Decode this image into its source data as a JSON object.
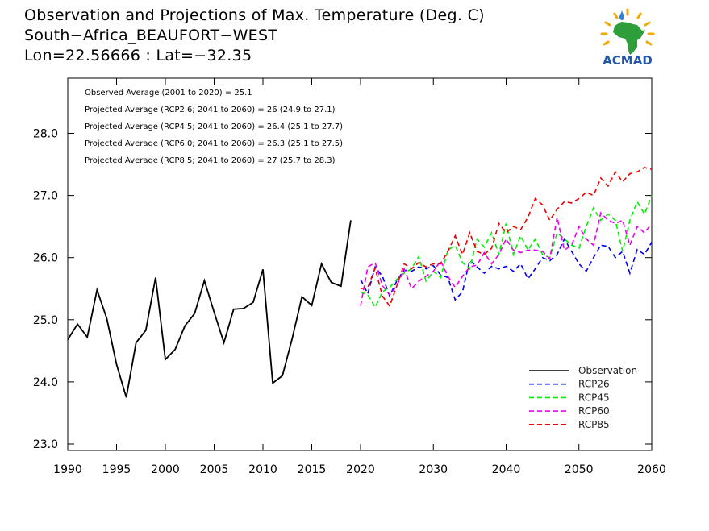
{
  "header": {
    "line1": "Observation and Projections of Max. Temperature (Deg. C)",
    "line2": "South−Africa_BEAUFORT−WEST",
    "line3": "Lon=22.56666 : Lat=−32.35"
  },
  "logo": {
    "text": "ACMAD",
    "icon": "africa-map-logo"
  },
  "annotations": [
    "Observed Average (2001 to 2020) = 25.1",
    "Projected Average (RCP2.6; 2041 to 2060) = 26 (24.9 to 27.1)",
    "Projected Average (RCP4.5; 2041 to 2060) = 26.4 (25.1 to 27.7)",
    "Projected Average (RCP6.0; 2041 to 2060) = 26.3 (25.1 to 27.5)",
    "Projected Average (RCP8.5; 2041 to 2060) = 27 (25.7 to 28.3)"
  ],
  "chart_data": {
    "type": "line",
    "title": "Observation and Projections of Max. Temperature (Deg. C)",
    "xlabel": "",
    "ylabel": "",
    "xlim": [
      1990,
      2060
    ],
    "ylim": [
      22.9,
      29.0
    ],
    "grid": false,
    "legend_position": "bottom-right",
    "x_ticks": [
      {
        "value": 1990,
        "label": "1990"
      },
      {
        "value": 1995,
        "label": "1995"
      },
      {
        "value": 2000,
        "label": "2000"
      },
      {
        "value": 2005,
        "label": "2005"
      },
      {
        "value": 2010,
        "label": "2010"
      },
      {
        "value": 2015,
        "label": "2015"
      },
      {
        "value": 2020,
        "label": "2020"
      },
      {
        "value": 2030,
        "label": "2030"
      },
      {
        "value": 2040,
        "label": "2040"
      },
      {
        "value": 2050,
        "label": "2050"
      },
      {
        "value": 2060,
        "label": "2060"
      }
    ],
    "y_ticks": [
      {
        "value": 23.0,
        "label": "23.0"
      },
      {
        "value": 24.0,
        "label": "24.0"
      },
      {
        "value": 25.0,
        "label": "25.0"
      },
      {
        "value": 26.0,
        "label": "26.0"
      },
      {
        "value": 27.0,
        "label": "27.0"
      },
      {
        "value": 28.0,
        "label": "28.0"
      }
    ],
    "series": [
      {
        "name": "Observation",
        "color": "#000000",
        "dashed": false,
        "x": [
          1990,
          1991,
          1992,
          1993,
          1994,
          1995,
          1996,
          1997,
          1998,
          1999,
          2000,
          2001,
          2002,
          2003,
          2004,
          2005,
          2006,
          2007,
          2008,
          2009,
          2010,
          2011,
          2012,
          2013,
          2014,
          2015,
          2016,
          2017,
          2018,
          2019
        ],
        "y": [
          24.68,
          24.93,
          24.72,
          25.48,
          25.02,
          24.28,
          23.75,
          24.63,
          24.83,
          25.68,
          24.36,
          24.52,
          24.9,
          25.1,
          25.63,
          25.12,
          24.63,
          25.17,
          25.18,
          25.28,
          25.81,
          23.98,
          24.1,
          24.7,
          25.37,
          25.23,
          25.9,
          25.6,
          25.54,
          26.6
        ]
      },
      {
        "name": "RCP26",
        "color": "#0000ee",
        "dashed": true,
        "x": [
          2020,
          2021,
          2022,
          2023,
          2024,
          2025,
          2026,
          2027,
          2028,
          2029,
          2030,
          2031,
          2032,
          2033,
          2034,
          2035,
          2036,
          2037,
          2038,
          2039,
          2040,
          2041,
          2042,
          2043,
          2044,
          2045,
          2046,
          2047,
          2048,
          2049,
          2050,
          2051,
          2052,
          2053,
          2054,
          2055,
          2056,
          2057,
          2058,
          2059,
          2060
        ],
        "y": [
          25.65,
          25.42,
          25.85,
          25.7,
          25.38,
          25.63,
          25.8,
          25.78,
          25.85,
          25.82,
          25.87,
          25.72,
          25.68,
          25.32,
          25.45,
          25.96,
          25.85,
          25.75,
          25.86,
          25.82,
          25.86,
          25.78,
          25.9,
          25.66,
          25.82,
          26.0,
          25.95,
          26.05,
          26.3,
          26.1,
          25.9,
          25.78,
          26.0,
          26.2,
          26.18,
          26.0,
          26.1,
          25.75,
          26.13,
          26.05,
          26.25
        ]
      },
      {
        "name": "RCP45",
        "color": "#00ee00",
        "dashed": true,
        "x": [
          2020,
          2021,
          2022,
          2023,
          2024,
          2025,
          2026,
          2027,
          2028,
          2029,
          2030,
          2031,
          2032,
          2033,
          2034,
          2035,
          2036,
          2037,
          2038,
          2039,
          2040,
          2041,
          2042,
          2043,
          2044,
          2045,
          2046,
          2047,
          2048,
          2049,
          2050,
          2051,
          2052,
          2053,
          2054,
          2055,
          2056,
          2057,
          2058,
          2059,
          2060
        ],
        "y": [
          25.45,
          25.4,
          25.2,
          25.45,
          25.52,
          25.65,
          25.75,
          25.82,
          26.02,
          25.62,
          25.78,
          25.68,
          26.12,
          26.2,
          25.92,
          25.82,
          26.3,
          26.17,
          26.4,
          26.05,
          26.55,
          26.05,
          26.35,
          26.12,
          26.3,
          26.05,
          26.0,
          26.4,
          26.3,
          26.2,
          26.15,
          26.5,
          26.8,
          26.6,
          26.7,
          26.6,
          26.1,
          26.6,
          26.9,
          26.7,
          27.0
        ]
      },
      {
        "name": "RCP60",
        "color": "#ee00ee",
        "dashed": true,
        "x": [
          2020,
          2021,
          2022,
          2023,
          2024,
          2025,
          2026,
          2027,
          2028,
          2029,
          2030,
          2031,
          2032,
          2033,
          2034,
          2035,
          2036,
          2037,
          2038,
          2039,
          2040,
          2041,
          2042,
          2043,
          2044,
          2045,
          2046,
          2047,
          2048,
          2049,
          2050,
          2051,
          2052,
          2053,
          2054,
          2055,
          2056,
          2057,
          2058,
          2059,
          2060
        ],
        "y": [
          25.22,
          25.85,
          25.92,
          25.55,
          25.4,
          25.55,
          25.82,
          25.5,
          25.62,
          25.7,
          25.78,
          25.95,
          25.7,
          25.52,
          25.7,
          25.85,
          25.88,
          26.08,
          25.9,
          26.05,
          26.3,
          26.12,
          26.08,
          26.12,
          26.12,
          26.1,
          25.98,
          26.65,
          26.12,
          26.2,
          26.5,
          26.3,
          26.2,
          26.72,
          26.6,
          26.55,
          26.6,
          26.2,
          26.5,
          26.4,
          26.55
        ]
      },
      {
        "name": "RCP85",
        "color": "#ee0000",
        "dashed": true,
        "x": [
          2020,
          2021,
          2022,
          2023,
          2024,
          2025,
          2026,
          2027,
          2028,
          2029,
          2030,
          2031,
          2032,
          2033,
          2034,
          2035,
          2036,
          2037,
          2038,
          2039,
          2040,
          2041,
          2042,
          2043,
          2044,
          2045,
          2046,
          2047,
          2048,
          2049,
          2050,
          2051,
          2052,
          2053,
          2054,
          2055,
          2056,
          2057,
          2058,
          2059,
          2060
        ],
        "y": [
          25.5,
          25.52,
          25.83,
          25.38,
          25.22,
          25.55,
          25.9,
          25.82,
          25.92,
          25.85,
          25.9,
          25.9,
          26.1,
          26.35,
          26.05,
          26.4,
          26.1,
          26.05,
          26.15,
          26.55,
          26.4,
          26.5,
          26.45,
          26.65,
          26.95,
          26.85,
          26.6,
          26.78,
          26.9,
          26.88,
          26.95,
          27.05,
          27.0,
          27.28,
          27.15,
          27.38,
          27.22,
          27.35,
          27.38,
          27.45,
          27.42
        ]
      }
    ]
  }
}
